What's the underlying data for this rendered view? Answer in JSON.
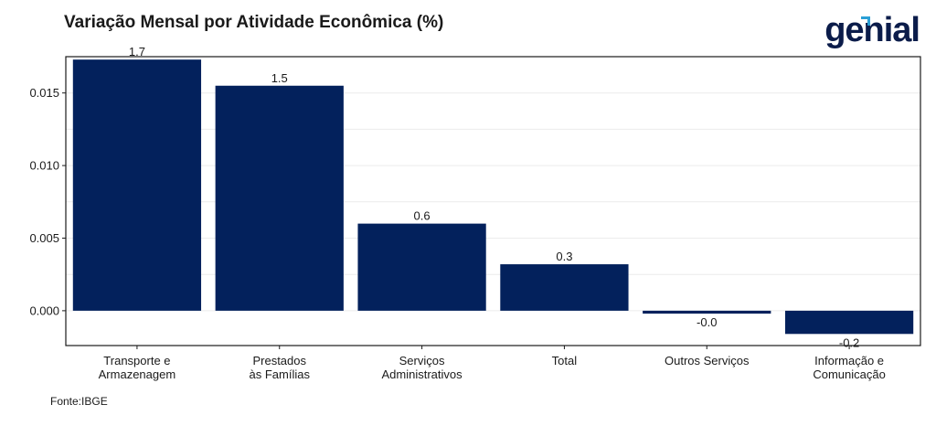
{
  "chart_data": {
    "type": "bar",
    "title": "Variação Mensal por Atividade Econômica (%)",
    "categories": [
      [
        "Transporte e",
        "Armazenagem"
      ],
      [
        "Prestados",
        "às Famílias"
      ],
      [
        "Serviços",
        "Administrativos"
      ],
      [
        "Total"
      ],
      [
        "Outros Serviços"
      ],
      [
        "Informação e",
        "Comunicação"
      ]
    ],
    "values": [
      0.0173,
      0.0155,
      0.006,
      0.0032,
      -0.0002,
      -0.0016
    ],
    "data_labels": [
      "1.7",
      "1.5",
      "0.6",
      "0.3",
      "-0.0",
      "-0.2"
    ],
    "yticks": [
      0.0,
      0.005,
      0.01,
      0.015
    ],
    "ytick_labels": [
      "0.000",
      "0.005",
      "0.010",
      "0.015"
    ],
    "ylim": [
      -0.0024,
      0.0175
    ],
    "grid": true,
    "bar_color": "#03215c"
  },
  "logo": {
    "text": "genial",
    "color": "#0b1c4a",
    "accent_color": "#2a9fd6"
  },
  "source": "Fonte:IBGE"
}
